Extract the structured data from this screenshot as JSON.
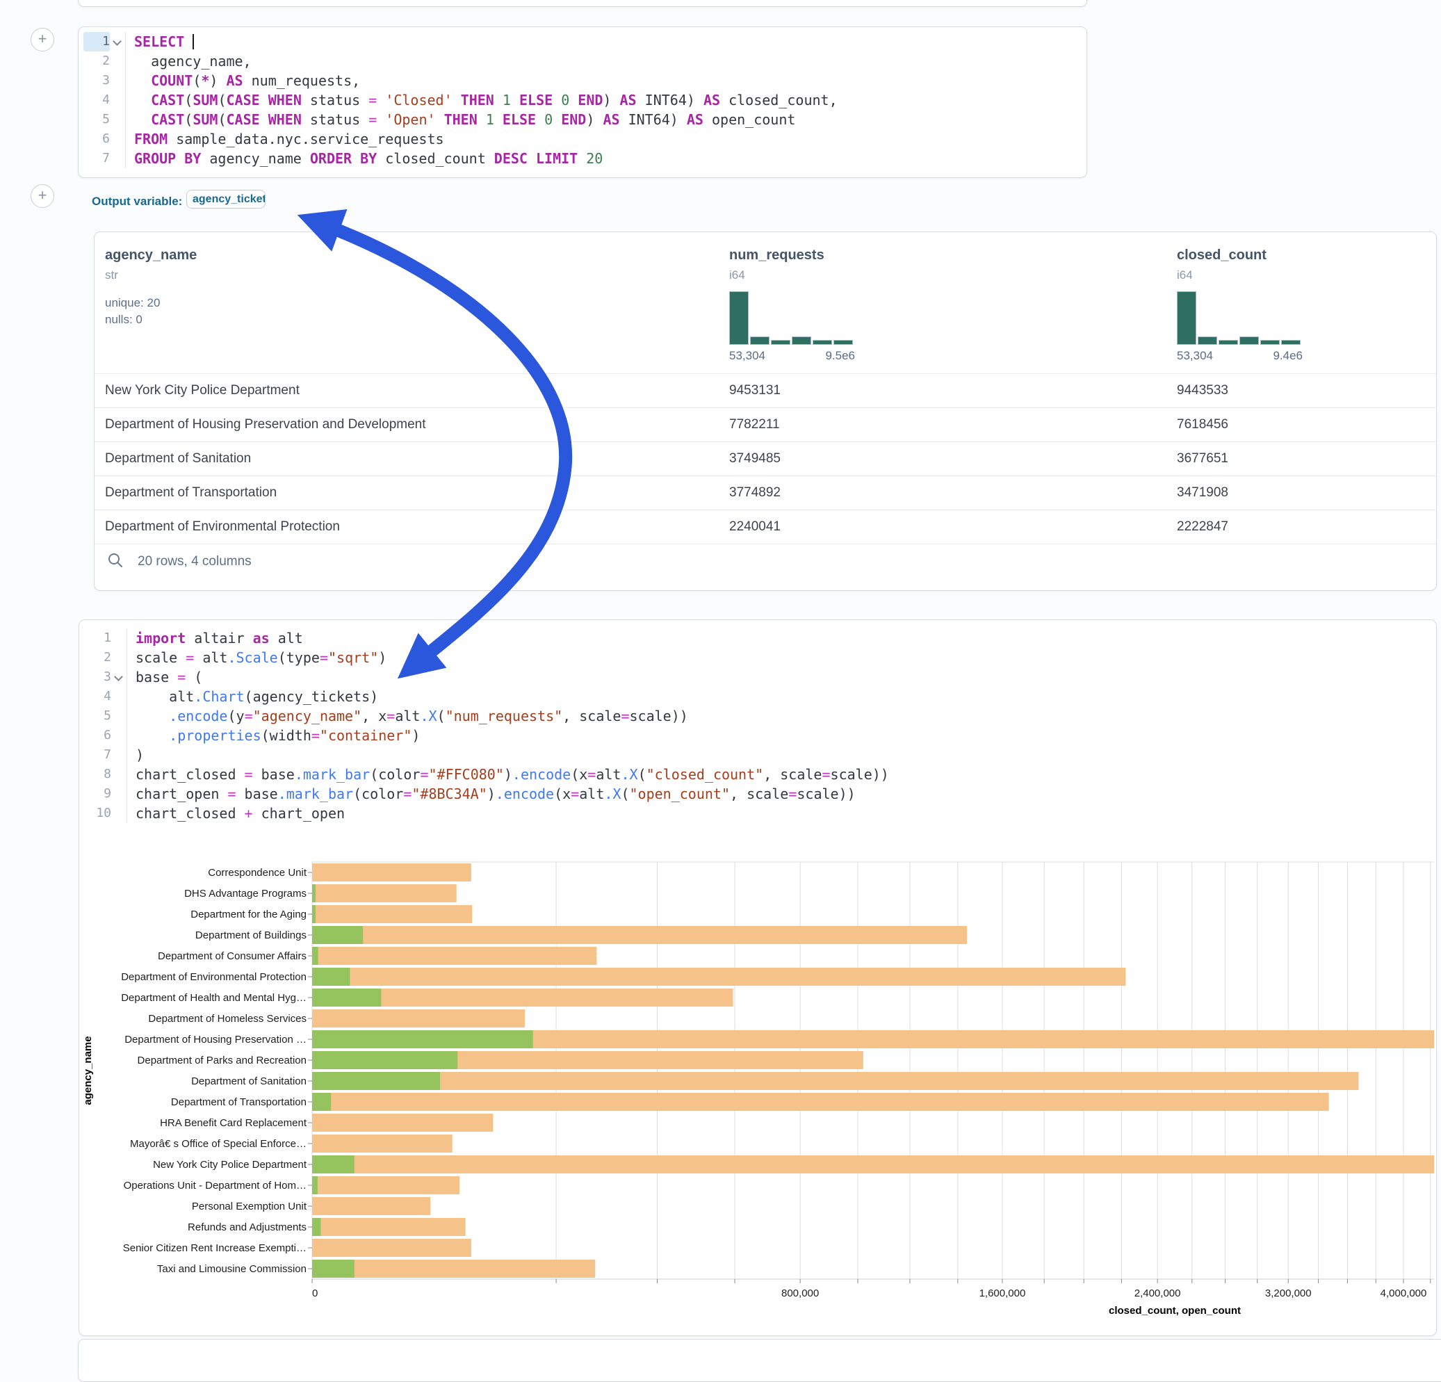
{
  "output_variable": {
    "label": "Output variable:",
    "value": "agency_tickets"
  },
  "sql_cell": {
    "lines": [
      {
        "n": "1",
        "active": true,
        "caret": true,
        "tokens": [
          [
            "k",
            "SELECT"
          ],
          [
            "t",
            " "
          ],
          [
            "cursor",
            ""
          ]
        ]
      },
      {
        "n": "2",
        "tokens": [
          [
            "t",
            "  agency_name,"
          ]
        ]
      },
      {
        "n": "3",
        "tokens": [
          [
            "t",
            "  "
          ],
          [
            "k",
            "COUNT"
          ],
          [
            "t",
            "("
          ],
          [
            "k",
            "*"
          ],
          [
            "t",
            ") "
          ],
          [
            "k",
            "AS"
          ],
          [
            "t",
            " num_requests,"
          ]
        ]
      },
      {
        "n": "4",
        "tokens": [
          [
            "t",
            "  "
          ],
          [
            "k",
            "CAST"
          ],
          [
            "t",
            "("
          ],
          [
            "k",
            "SUM"
          ],
          [
            "t",
            "("
          ],
          [
            "k",
            "CASE"
          ],
          [
            "t",
            " "
          ],
          [
            "k",
            "WHEN"
          ],
          [
            "t",
            " status "
          ],
          [
            "o",
            "="
          ],
          [
            "t",
            " "
          ],
          [
            "s",
            "'Closed'"
          ],
          [
            "t",
            " "
          ],
          [
            "k",
            "THEN"
          ],
          [
            "t",
            " "
          ],
          [
            "n",
            "1"
          ],
          [
            "t",
            " "
          ],
          [
            "k",
            "ELSE"
          ],
          [
            "t",
            " "
          ],
          [
            "n",
            "0"
          ],
          [
            "t",
            " "
          ],
          [
            "k",
            "END"
          ],
          [
            "t",
            ") "
          ],
          [
            "k",
            "AS"
          ],
          [
            "t",
            " INT64) "
          ],
          [
            "k",
            "AS"
          ],
          [
            "t",
            " closed_count,"
          ]
        ]
      },
      {
        "n": "5",
        "tokens": [
          [
            "t",
            "  "
          ],
          [
            "k",
            "CAST"
          ],
          [
            "t",
            "("
          ],
          [
            "k",
            "SUM"
          ],
          [
            "t",
            "("
          ],
          [
            "k",
            "CASE"
          ],
          [
            "t",
            " "
          ],
          [
            "k",
            "WHEN"
          ],
          [
            "t",
            " status "
          ],
          [
            "o",
            "="
          ],
          [
            "t",
            " "
          ],
          [
            "s",
            "'Open'"
          ],
          [
            "t",
            " "
          ],
          [
            "k",
            "THEN"
          ],
          [
            "t",
            " "
          ],
          [
            "n",
            "1"
          ],
          [
            "t",
            " "
          ],
          [
            "k",
            "ELSE"
          ],
          [
            "t",
            " "
          ],
          [
            "n",
            "0"
          ],
          [
            "t",
            " "
          ],
          [
            "k",
            "END"
          ],
          [
            "t",
            ") "
          ],
          [
            "k",
            "AS"
          ],
          [
            "t",
            " INT64) "
          ],
          [
            "k",
            "AS"
          ],
          [
            "t",
            " open_count"
          ]
        ]
      },
      {
        "n": "6",
        "tokens": [
          [
            "k",
            "FROM"
          ],
          [
            "t",
            " sample_data.nyc.service_requests"
          ]
        ]
      },
      {
        "n": "7",
        "tokens": [
          [
            "k",
            "GROUP BY"
          ],
          [
            "t",
            " agency_name "
          ],
          [
            "k",
            "ORDER BY"
          ],
          [
            "t",
            " closed_count "
          ],
          [
            "k",
            "DESC"
          ],
          [
            "t",
            " "
          ],
          [
            "k",
            "LIMIT"
          ],
          [
            "t",
            " "
          ],
          [
            "n",
            "20"
          ]
        ]
      }
    ]
  },
  "table": {
    "columns": [
      {
        "name": "agency_name",
        "type": "str",
        "stats": [
          "unique: 20",
          "nulls: 0"
        ]
      },
      {
        "name": "num_requests",
        "type": "i64",
        "hist": {
          "bars": [
            1,
            0.16,
            0.09,
            0.16,
            0.09,
            0.095
          ],
          "min_label": "53,304",
          "max_label": "9.5e6"
        }
      },
      {
        "name": "closed_count",
        "type": "i64",
        "hist": {
          "bars": [
            1,
            0.16,
            0.09,
            0.16,
            0.09,
            0.095
          ],
          "min_label": "53,304",
          "max_label": "9.4e6"
        }
      }
    ],
    "rows": [
      [
        "New York City Police Department",
        "9453131",
        "9443533"
      ],
      [
        "Department of Housing Preservation and Development",
        "7782211",
        "7618456"
      ],
      [
        "Department of Sanitation",
        "3749485",
        "3677651"
      ],
      [
        "Department of Transportation",
        "3774892",
        "3471908"
      ],
      [
        "Department of Environmental Protection",
        "2240041",
        "2222847"
      ]
    ],
    "footer": "20 rows, 4 columns"
  },
  "python_cell": {
    "lines": [
      {
        "n": "1",
        "tokens": [
          [
            "k",
            "import"
          ],
          [
            "t",
            " altair "
          ],
          [
            "k",
            "as"
          ],
          [
            "t",
            " alt"
          ]
        ]
      },
      {
        "n": "2",
        "tokens": [
          [
            "t",
            "scale "
          ],
          [
            "o",
            "="
          ],
          [
            "t",
            " alt"
          ],
          [
            "f",
            ".Scale"
          ],
          [
            "t",
            "(type"
          ],
          [
            "o",
            "="
          ],
          [
            "s",
            "\"sqrt\""
          ],
          [
            "t",
            ")"
          ]
        ]
      },
      {
        "n": "3",
        "caret": true,
        "tokens": [
          [
            "t",
            "base "
          ],
          [
            "o",
            "="
          ],
          [
            "t",
            " ("
          ]
        ]
      },
      {
        "n": "4",
        "tokens": [
          [
            "t",
            "    alt"
          ],
          [
            "f",
            ".Chart"
          ],
          [
            "t",
            "(agency_tickets)"
          ]
        ]
      },
      {
        "n": "5",
        "tokens": [
          [
            "t",
            "    "
          ],
          [
            "f",
            ".encode"
          ],
          [
            "t",
            "(y"
          ],
          [
            "o",
            "="
          ],
          [
            "s",
            "\"agency_name\""
          ],
          [
            "t",
            ", x"
          ],
          [
            "o",
            "="
          ],
          [
            "t",
            "alt"
          ],
          [
            "f",
            ".X"
          ],
          [
            "t",
            "("
          ],
          [
            "s",
            "\"num_requests\""
          ],
          [
            "t",
            ", scale"
          ],
          [
            "o",
            "="
          ],
          [
            "t",
            "scale))"
          ]
        ]
      },
      {
        "n": "6",
        "tokens": [
          [
            "t",
            "    "
          ],
          [
            "f",
            ".properties"
          ],
          [
            "t",
            "(width"
          ],
          [
            "o",
            "="
          ],
          [
            "s",
            "\"container\""
          ],
          [
            "t",
            ")"
          ]
        ]
      },
      {
        "n": "7",
        "tokens": [
          [
            "t",
            ")"
          ]
        ]
      },
      {
        "n": "8",
        "tokens": [
          [
            "t",
            "chart_closed "
          ],
          [
            "o",
            "="
          ],
          [
            "t",
            " base"
          ],
          [
            "f",
            ".mark_bar"
          ],
          [
            "t",
            "(color"
          ],
          [
            "o",
            "="
          ],
          [
            "s",
            "\"#FFC080\""
          ],
          [
            "t",
            ")"
          ],
          [
            "f",
            ".encode"
          ],
          [
            "t",
            "(x"
          ],
          [
            "o",
            "="
          ],
          [
            "t",
            "alt"
          ],
          [
            "f",
            ".X"
          ],
          [
            "t",
            "("
          ],
          [
            "s",
            "\"closed_count\""
          ],
          [
            "t",
            ", scale"
          ],
          [
            "o",
            "="
          ],
          [
            "t",
            "scale))"
          ]
        ]
      },
      {
        "n": "9",
        "tokens": [
          [
            "t",
            "chart_open "
          ],
          [
            "o",
            "="
          ],
          [
            "t",
            " base"
          ],
          [
            "f",
            ".mark_bar"
          ],
          [
            "t",
            "(color"
          ],
          [
            "o",
            "="
          ],
          [
            "s",
            "\"#8BC34A\""
          ],
          [
            "t",
            ")"
          ],
          [
            "f",
            ".encode"
          ],
          [
            "t",
            "(x"
          ],
          [
            "o",
            "="
          ],
          [
            "t",
            "alt"
          ],
          [
            "f",
            ".X"
          ],
          [
            "t",
            "("
          ],
          [
            "s",
            "\"open_count\""
          ],
          [
            "t",
            ", scale"
          ],
          [
            "o",
            "="
          ],
          [
            "t",
            "scale))"
          ]
        ]
      },
      {
        "n": "10",
        "tokens": [
          [
            "t",
            "chart_closed "
          ],
          [
            "o",
            "+"
          ],
          [
            "t",
            " chart_open"
          ]
        ]
      }
    ]
  },
  "chart_data": {
    "type": "bar",
    "orientation": "horizontal",
    "x_scale": "sqrt",
    "xlabel": "closed_count, open_count",
    "ylabel": "agency_name",
    "x_tick_values": [
      0,
      800000,
      1600000,
      2400000,
      3200000,
      4000000
    ],
    "x_tick_labels": [
      "0",
      "800,000",
      "1,600,000",
      "2,400,000",
      "3,200,000",
      "4,000,000"
    ],
    "grid_step": 200000,
    "grid_on": true,
    "categories": [
      "Correspondence Unit",
      "DHS Advantage Programs",
      "Department for the Aging",
      "Department of Buildings",
      "Department of Consumer Affairs",
      "Department of Environmental Protection",
      "Department of Health and Mental Hyg…",
      "Department of Homeless Services",
      "Department of Housing Preservation …",
      "Department of Parks and Recreation",
      "Department of Sanitation",
      "Department of Transportation",
      "HRA Benefit Card Replacement",
      "Mayorâ€ s Office of Special Enforce…",
      "New York City Police Department",
      "Operations Unit - Department of Hom…",
      "Personal Exemption Unit",
      "Refunds and Adjustments",
      "Senior Citizen Rent Increase Exempti…",
      "Taxi and Limousine Commission"
    ],
    "series": [
      {
        "name": "closed_count",
        "color": "#F5C389",
        "values": [
          85000,
          70000,
          86000,
          1440000,
          272000,
          2222847,
          595000,
          152000,
          7618456,
          1020000,
          3677651,
          3471908,
          110000,
          66000,
          9443533,
          73000,
          47000,
          79000,
          85000,
          269000
        ]
      },
      {
        "name": "open_count",
        "color": "#95C35E",
        "values": [
          0,
          40,
          40,
          8700,
          120,
          4800,
          16000,
          0,
          163755,
          71000,
          55000,
          1200,
          0,
          0,
          6000,
          100,
          0,
          250,
          0,
          6000
        ]
      }
    ]
  },
  "arrow": {
    "color": "#2B57DC"
  },
  "icons": {
    "plus": "+"
  }
}
